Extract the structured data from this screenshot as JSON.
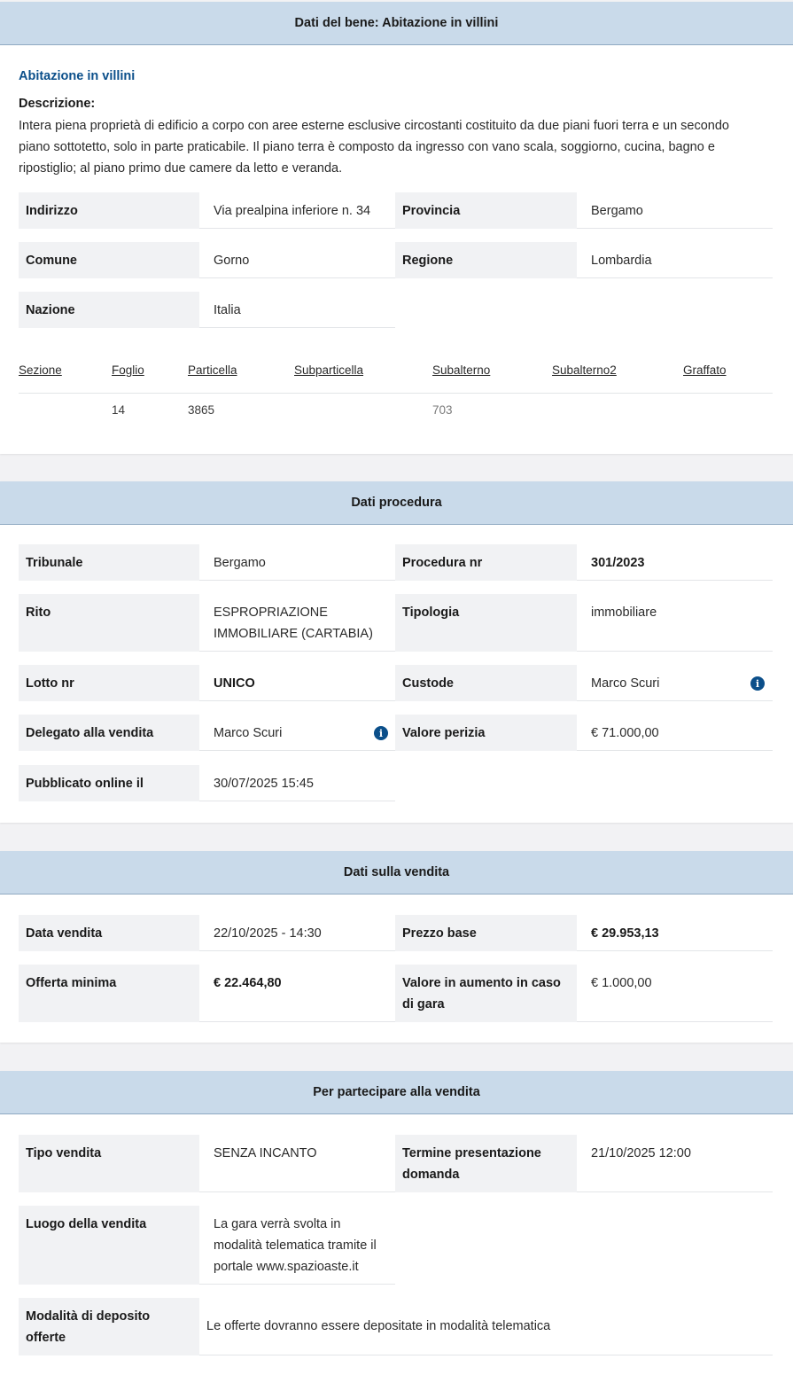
{
  "bene": {
    "header": "Dati del bene: Abitazione in villini",
    "title": "Abitazione in villini",
    "desc_label": "Descrizione:",
    "desc_line1": "Intera piena proprietà di edificio a corpo con aree esterne esclusive circostanti costituito da due piani fuori terra e un secondo",
    "desc_line2": "piano sottotetto, solo in parte praticabile. Il piano terra è composto da ingresso con vano scala, soggiorno, cucina, bagno e",
    "desc_line3": "ripostiglio; al piano primo due camere da letto e veranda.",
    "fields": {
      "indirizzo_label": "Indirizzo",
      "indirizzo": "Via prealpina inferiore n. 34",
      "provincia_label": "Provincia",
      "provincia": "Bergamo",
      "comune_label": "Comune",
      "comune": "Gorno",
      "regione_label": "Regione",
      "regione": "Lombardia",
      "nazione_label": "Nazione",
      "nazione": "Italia"
    },
    "catasto": {
      "headers": [
        "Sezione",
        "Foglio",
        "Particella",
        "Subparticella",
        "Subalterno",
        "Subalterno2",
        "Graffato"
      ],
      "row": [
        "",
        "14",
        "3865",
        "",
        "703",
        "",
        ""
      ]
    }
  },
  "procedura": {
    "header": "Dati procedura",
    "tribunale_label": "Tribunale",
    "tribunale": "Bergamo",
    "procedura_label": "Procedura nr",
    "procedura": "301/2023",
    "rito_label": "Rito",
    "rito_line1": "ESPROPRIAZIONE",
    "rito_line2": "IMMOBILIARE (CARTABIA)",
    "tipologia_label": "Tipologia",
    "tipologia": "immobiliare",
    "lotto_label": "Lotto nr",
    "lotto": "UNICO",
    "custode_label": "Custode",
    "custode": "Marco Scuri",
    "delegato_label": "Delegato alla vendita",
    "delegato": "Marco Scuri",
    "perizia_label": "Valore perizia",
    "perizia": "€ 71.000,00",
    "pubblicato_label": "Pubblicato online il",
    "pubblicato": "30/07/2025 15:45",
    "info_icon_glyph": "i"
  },
  "vendita": {
    "header": "Dati sulla vendita",
    "data_label": "Data vendita",
    "data": "22/10/2025 - 14:30",
    "prezzo_label": "Prezzo base",
    "prezzo": "€ 29.953,13",
    "offerta_label": "Offerta minima",
    "offerta": "€ 22.464,80",
    "aumento_label_line1": "Valore in aumento in caso",
    "aumento_label_line2": "di gara",
    "aumento": "€ 1.000,00"
  },
  "partecipare": {
    "header": "Per partecipare alla vendita",
    "tipo_label": "Tipo vendita",
    "tipo": "SENZA INCANTO",
    "termine_label_line1": "Termine presentazione",
    "termine_label_line2": "domanda",
    "termine": "21/10/2025 12:00",
    "luogo_label": "Luogo della vendita",
    "luogo_line1": "La gara verrà svolta in",
    "luogo_line2": "modalità telematica tramite il",
    "luogo_line3": "portale www.spazioaste.it",
    "deposito_label_line1": "Modalità di deposito",
    "deposito_label_line2": "offerte",
    "deposito": "Le offerte dovranno essere depositate in modalità telematica"
  }
}
